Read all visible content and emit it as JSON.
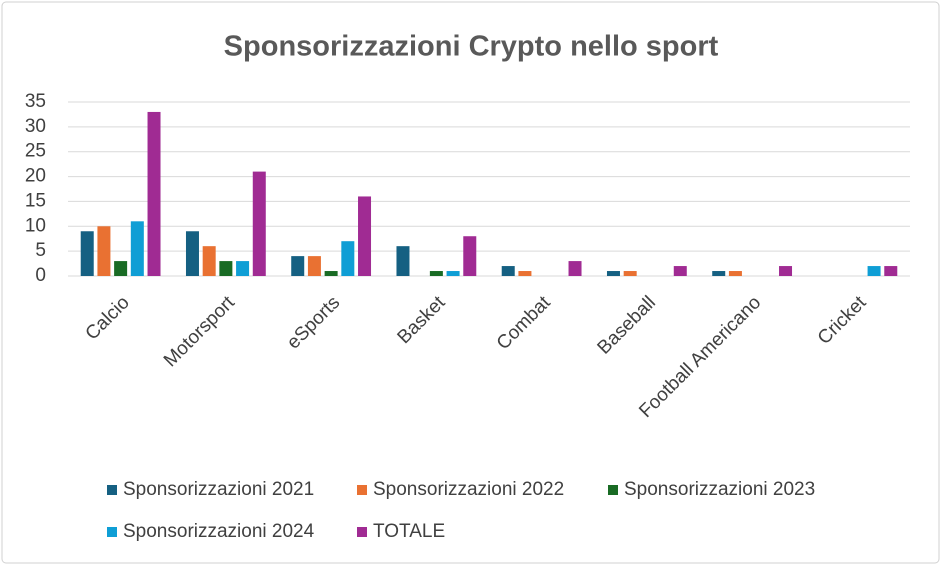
{
  "chart_data": {
    "type": "bar",
    "title": "Sponsorizzazioni Crypto nello sport",
    "categories": [
      "Calcio",
      "Motorsport",
      "eSports",
      "Basket",
      "Combat",
      "Baseball",
      "Football Americano",
      "Cricket"
    ],
    "series": [
      {
        "name": "Sponsorizzazioni 2021",
        "color": "#156082",
        "values": [
          9,
          9,
          4,
          6,
          2,
          1,
          1,
          0
        ]
      },
      {
        "name": "Sponsorizzazioni 2022",
        "color": "#e97132",
        "values": [
          10,
          6,
          4,
          0,
          1,
          1,
          1,
          0
        ]
      },
      {
        "name": "Sponsorizzazioni 2023",
        "color": "#196b24",
        "values": [
          3,
          3,
          1,
          1,
          0,
          0,
          0,
          0
        ]
      },
      {
        "name": "Sponsorizzazioni 2024",
        "color": "#0f9ed5",
        "values": [
          11,
          3,
          7,
          1,
          0,
          0,
          0,
          2
        ]
      },
      {
        "name": "TOTALE",
        "color": "#a02b93",
        "values": [
          33,
          21,
          16,
          8,
          3,
          2,
          2,
          2
        ]
      }
    ],
    "ylim": [
      0,
      35
    ],
    "yticks": [
      0,
      5,
      10,
      15,
      20,
      25,
      30,
      35
    ],
    "grid": true,
    "legend": "bottom"
  }
}
